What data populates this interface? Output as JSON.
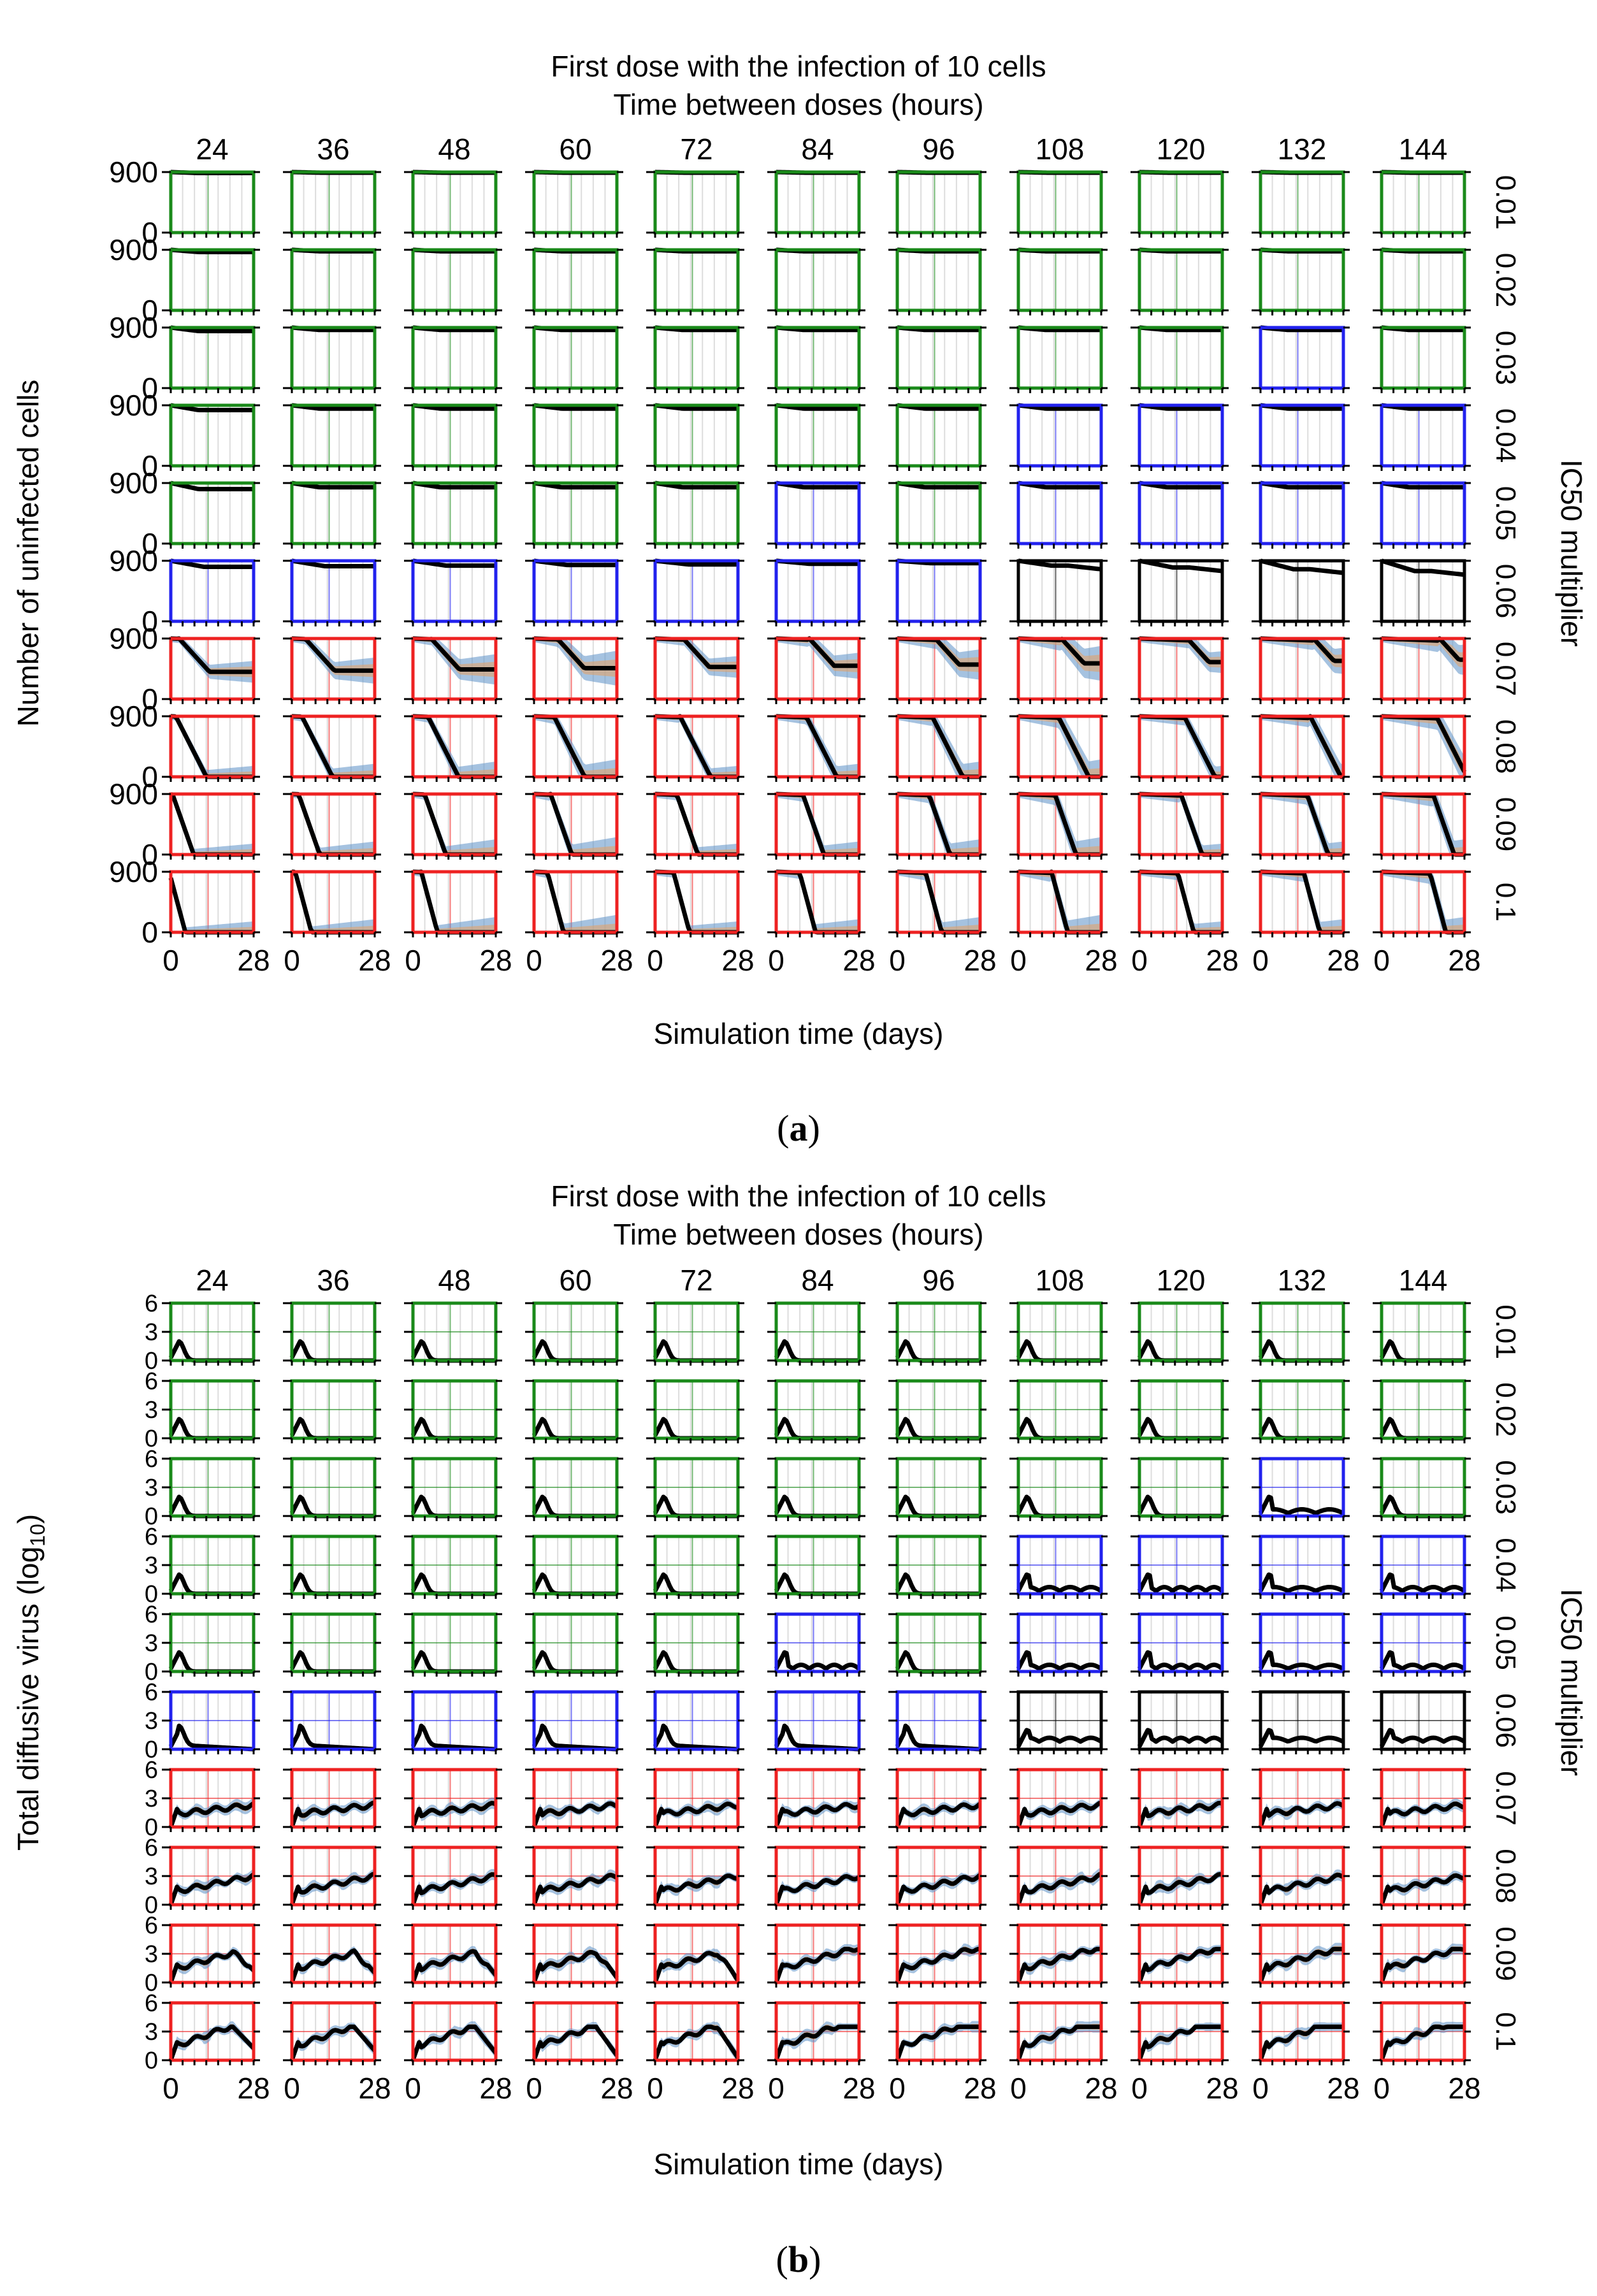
{
  "chart_data": [
    {
      "panel": "a",
      "panel_label": "a",
      "type": "line",
      "title_line1": "First dose with the infection of 10 cells",
      "title_line2": "Time between doses (hours)",
      "ylabel": "Number of uninfected cells",
      "xlabel": "Simulation time (days)",
      "row_axis_label": "IC50 multiplier",
      "columns": [
        "24",
        "36",
        "48",
        "60",
        "72",
        "84",
        "96",
        "108",
        "120",
        "132",
        "144"
      ],
      "rows": [
        "0.01",
        "0.02",
        "0.03",
        "0.04",
        "0.05",
        "0.06",
        "0.07",
        "0.08",
        "0.09",
        "0.1"
      ],
      "y_ticks": [
        "900",
        "0"
      ],
      "x_ticks": [
        "0",
        "28"
      ],
      "xlim": [
        0,
        28
      ],
      "ylim": [
        0,
        900
      ],
      "border_status": [
        [
          "G",
          "G",
          "G",
          "G",
          "G",
          "G",
          "G",
          "G",
          "G",
          "G",
          "G"
        ],
        [
          "G",
          "G",
          "G",
          "G",
          "G",
          "G",
          "G",
          "G",
          "G",
          "G",
          "G"
        ],
        [
          "G",
          "G",
          "G",
          "G",
          "G",
          "G",
          "G",
          "G",
          "G",
          "B",
          "G"
        ],
        [
          "G",
          "G",
          "G",
          "G",
          "G",
          "G",
          "G",
          "B",
          "B",
          "B",
          "B"
        ],
        [
          "G",
          "G",
          "G",
          "G",
          "G",
          "B",
          "G",
          "B",
          "B",
          "B",
          "B"
        ],
        [
          "B",
          "B",
          "B",
          "B",
          "B",
          "B",
          "B",
          "K",
          "K",
          "K",
          "K"
        ],
        [
          "R",
          "R",
          "R",
          "R",
          "R",
          "R",
          "R",
          "R",
          "R",
          "R",
          "R"
        ],
        [
          "R",
          "R",
          "R",
          "R",
          "R",
          "R",
          "R",
          "R",
          "R",
          "R",
          "R"
        ],
        [
          "R",
          "R",
          "R",
          "R",
          "R",
          "R",
          "R",
          "R",
          "R",
          "R",
          "R"
        ],
        [
          "R",
          "R",
          "R",
          "R",
          "R",
          "R",
          "R",
          "R",
          "R",
          "R",
          "R"
        ]
      ],
      "status_colors": {
        "G": "#1a8a1a",
        "B": "#2222ee",
        "K": "#000000",
        "R": "#ee2222"
      }
    },
    {
      "panel": "b",
      "panel_label": "b",
      "type": "line",
      "title_line1": "First dose with the infection of 10 cells",
      "title_line2": "Time between doses (hours)",
      "ylabel": "Total diffusive virus (log",
      "ylabel_sub": "10",
      "ylabel_end": ")",
      "xlabel": "Simulation time (days)",
      "row_axis_label": "IC50 multiplier",
      "columns": [
        "24",
        "36",
        "48",
        "60",
        "72",
        "84",
        "96",
        "108",
        "120",
        "132",
        "144"
      ],
      "rows": [
        "0.01",
        "0.02",
        "0.03",
        "0.04",
        "0.05",
        "0.06",
        "0.07",
        "0.08",
        "0.09",
        "0.1"
      ],
      "y_ticks": [
        "6",
        "3",
        "0"
      ],
      "x_ticks": [
        "0",
        "28"
      ],
      "xlim": [
        0,
        28
      ],
      "ylim": [
        0,
        6
      ],
      "border_status": [
        [
          "G",
          "G",
          "G",
          "G",
          "G",
          "G",
          "G",
          "G",
          "G",
          "G",
          "G"
        ],
        [
          "G",
          "G",
          "G",
          "G",
          "G",
          "G",
          "G",
          "G",
          "G",
          "G",
          "G"
        ],
        [
          "G",
          "G",
          "G",
          "G",
          "G",
          "G",
          "G",
          "G",
          "G",
          "B",
          "G"
        ],
        [
          "G",
          "G",
          "G",
          "G",
          "G",
          "G",
          "G",
          "B",
          "B",
          "B",
          "B"
        ],
        [
          "G",
          "G",
          "G",
          "G",
          "G",
          "B",
          "G",
          "B",
          "B",
          "B",
          "B"
        ],
        [
          "B",
          "B",
          "B",
          "B",
          "B",
          "B",
          "B",
          "K",
          "K",
          "K",
          "K"
        ],
        [
          "R",
          "R",
          "R",
          "R",
          "R",
          "R",
          "R",
          "R",
          "R",
          "R",
          "R"
        ],
        [
          "R",
          "R",
          "R",
          "R",
          "R",
          "R",
          "R",
          "R",
          "R",
          "R",
          "R"
        ],
        [
          "R",
          "R",
          "R",
          "R",
          "R",
          "R",
          "R",
          "R",
          "R",
          "R",
          "R"
        ],
        [
          "R",
          "R",
          "R",
          "R",
          "R",
          "R",
          "R",
          "R",
          "R",
          "R",
          "R"
        ]
      ],
      "status_colors": {
        "G": "#1a8a1a",
        "B": "#2222ee",
        "K": "#000000",
        "R": "#ee2222"
      }
    }
  ],
  "series_colors": {
    "mean": "#000000",
    "band_blue": "#5b8fc7",
    "band_orange": "#e8a060"
  }
}
